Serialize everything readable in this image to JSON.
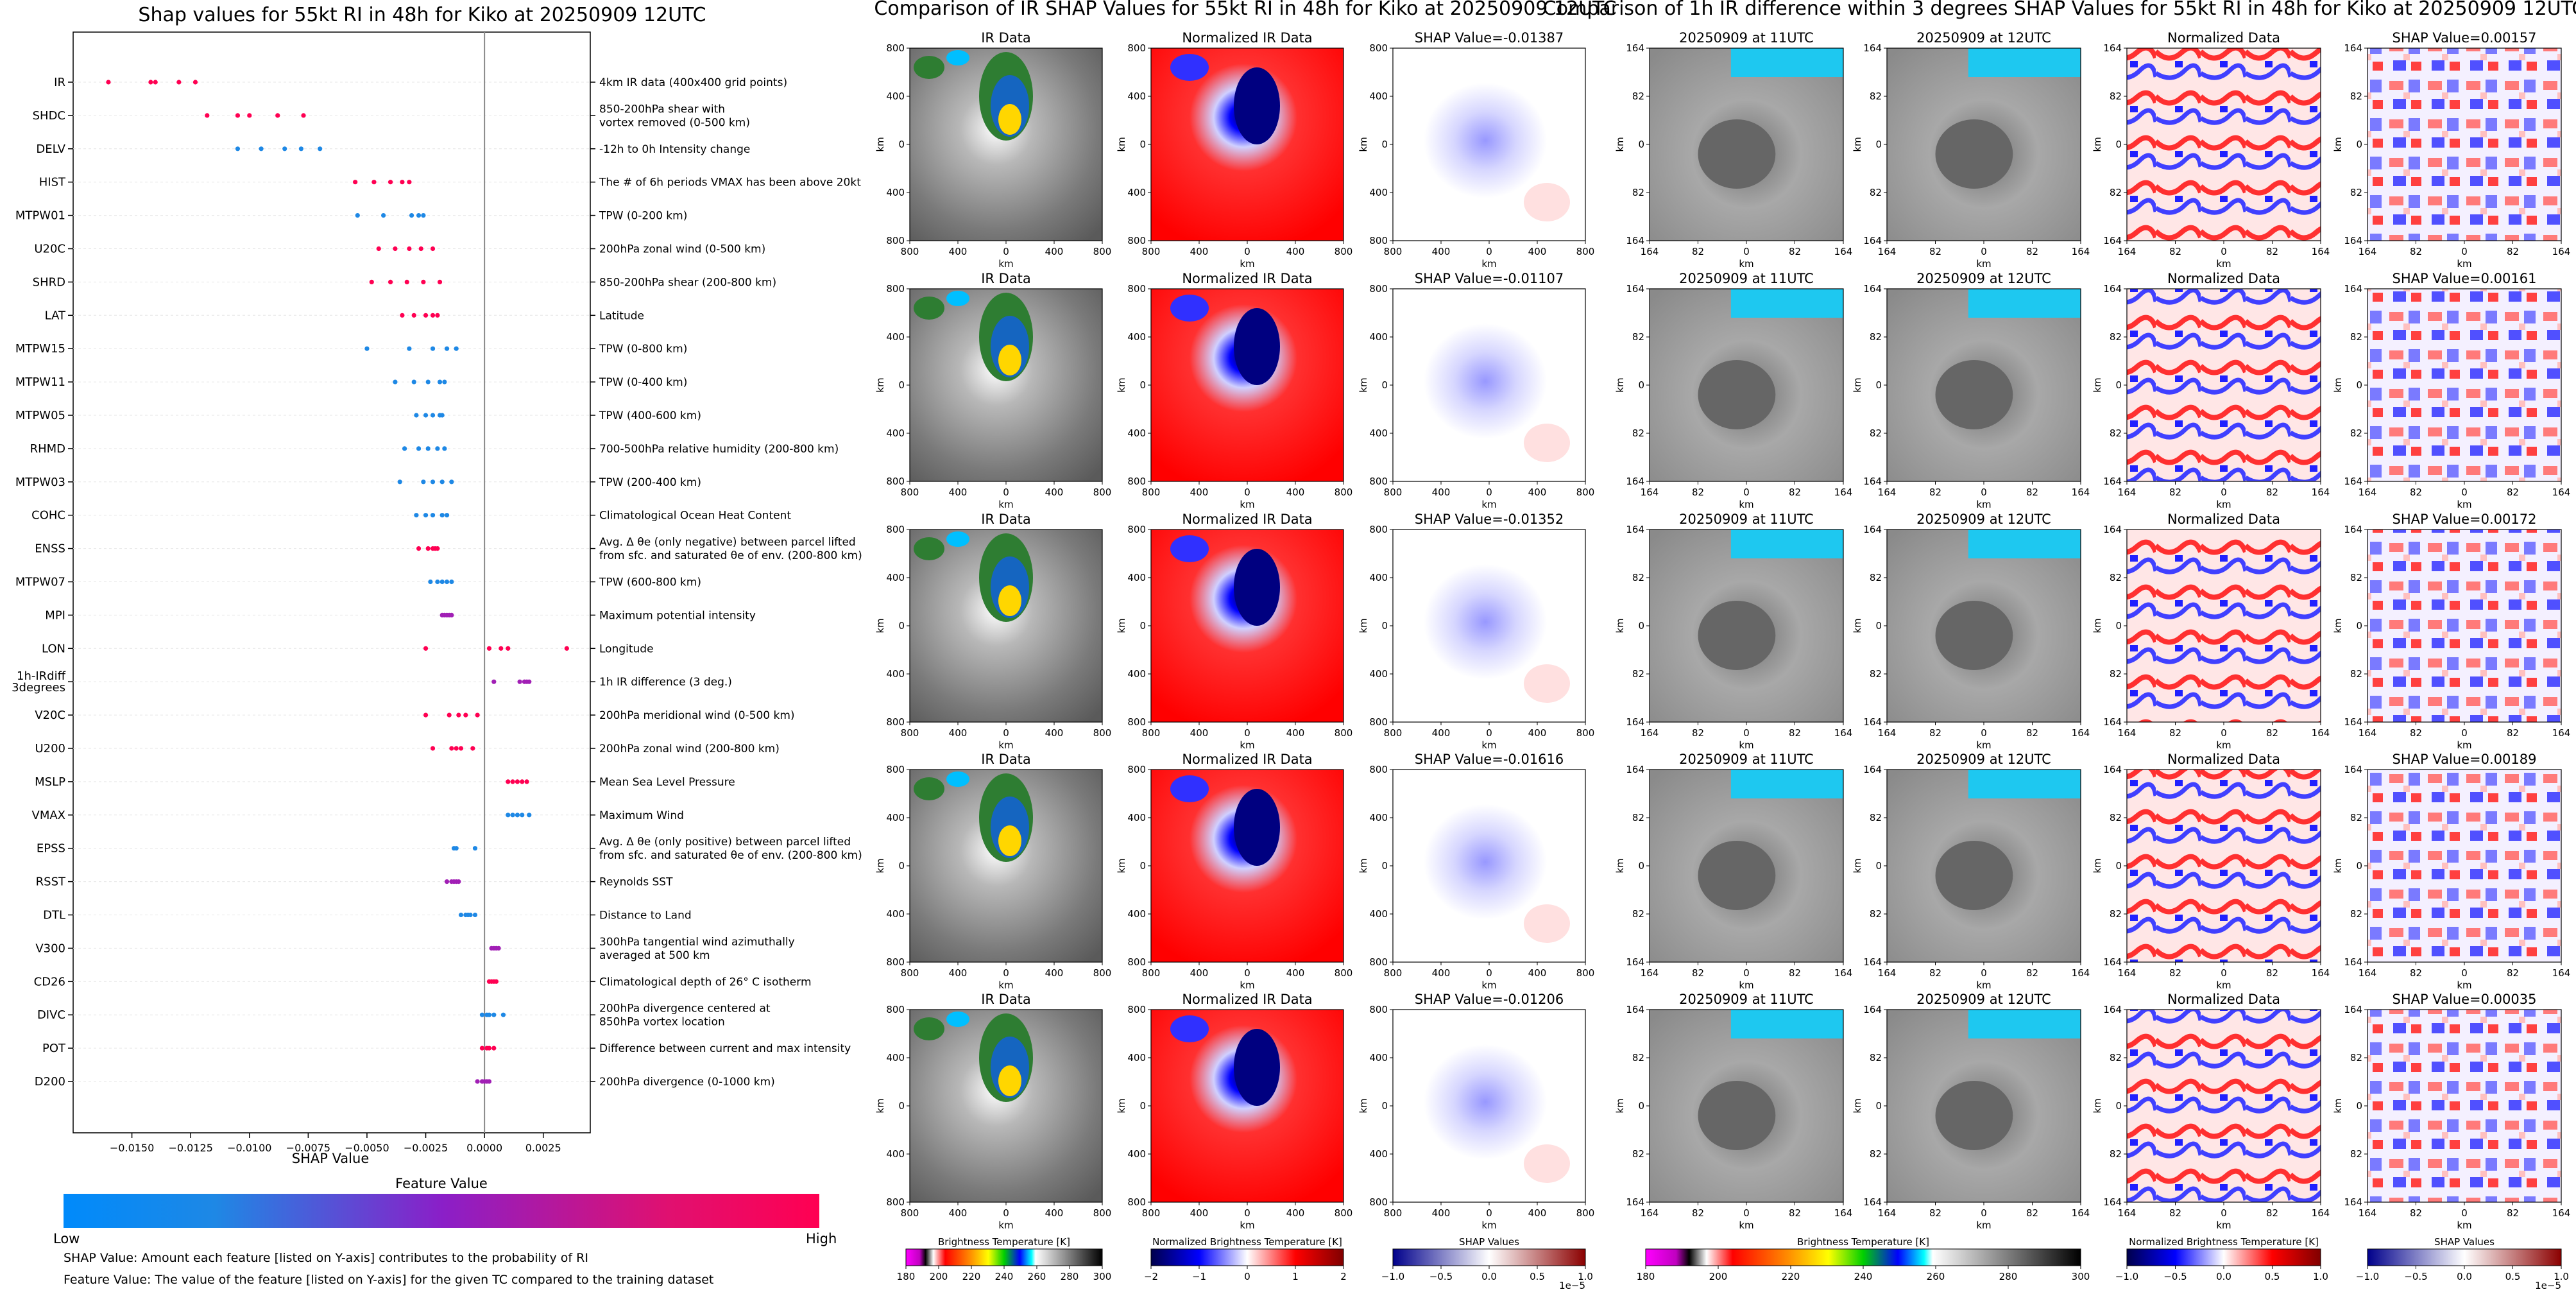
{
  "shap_chart": {
    "title": "Shap values for 55kt RI in 48h for Kiko at 20250909 12UTC",
    "xlabel": "SHAP Value",
    "x_ticks": [
      "−0.0150",
      "−0.0125",
      "−0.0100",
      "−0.0075",
      "−0.0050",
      "−0.0025",
      "0.0000",
      "0.0025"
    ],
    "colorbar_title": "Feature Value",
    "colorbar_low": "Low",
    "colorbar_high": "High",
    "colors": {
      "low": "#1e88e5",
      "mid": "#a11fb5",
      "high": "#ff0052"
    },
    "note1": "SHAP Value: Amount each feature [listed on Y-axis] contributes to the probability of RI",
    "note2": "Feature Value: The value of the feature [listed on Y-axis] for the given TC compared to the training dataset"
  },
  "chart_data": {
    "type": "scatter",
    "xlim": [
      -0.0175,
      0.0045
    ],
    "features": [
      {
        "name": "IR",
        "desc": "4km IR data (400x400 grid points)",
        "values": [
          -0.016,
          -0.0142,
          -0.014,
          -0.013,
          -0.0123
        ],
        "color": "high"
      },
      {
        "name": "SHDC",
        "desc": "850-200hPa shear with\nvortex removed (0-500 km)",
        "values": [
          -0.0118,
          -0.0105,
          -0.01,
          -0.0088,
          -0.0077
        ],
        "color": "high"
      },
      {
        "name": "DELV",
        "desc": "-12h to 0h Intensity change",
        "values": [
          -0.0105,
          -0.0095,
          -0.0085,
          -0.0078,
          -0.007
        ],
        "color": "low"
      },
      {
        "name": "HIST",
        "desc": "The # of 6h periods VMAX has been above 20kt",
        "values": [
          -0.0055,
          -0.0047,
          -0.004,
          -0.0035,
          -0.0032
        ],
        "color": "high"
      },
      {
        "name": "MTPW01",
        "desc": "TPW (0-200 km)",
        "values": [
          -0.0054,
          -0.0043,
          -0.0031,
          -0.0028,
          -0.0026
        ],
        "color": "low"
      },
      {
        "name": "U20C",
        "desc": "200hPa zonal wind (0-500 km)",
        "values": [
          -0.0045,
          -0.0038,
          -0.0032,
          -0.0027,
          -0.0022
        ],
        "color": "high"
      },
      {
        "name": "SHRD",
        "desc": "850-200hPa shear (200-800 km)",
        "values": [
          -0.0048,
          -0.004,
          -0.0033,
          -0.0026,
          -0.0019
        ],
        "color": "high"
      },
      {
        "name": "LAT",
        "desc": "Latitude",
        "values": [
          -0.0035,
          -0.003,
          -0.0025,
          -0.0022,
          -0.002
        ],
        "color": "high"
      },
      {
        "name": "MTPW15",
        "desc": "TPW (0-800 km)",
        "values": [
          -0.005,
          -0.0032,
          -0.0022,
          -0.0016,
          -0.0012
        ],
        "color": "low"
      },
      {
        "name": "MTPW11",
        "desc": "TPW (0-400 km)",
        "values": [
          -0.0038,
          -0.003,
          -0.0024,
          -0.0019,
          -0.0017
        ],
        "color": "low"
      },
      {
        "name": "MTPW05",
        "desc": "TPW (400-600 km)",
        "values": [
          -0.0029,
          -0.0025,
          -0.0022,
          -0.0019,
          -0.0018
        ],
        "color": "low"
      },
      {
        "name": "RHMD",
        "desc": "700-500hPa relative humidity (200-800 km)",
        "values": [
          -0.0034,
          -0.0028,
          -0.0024,
          -0.002,
          -0.0017
        ],
        "color": "low"
      },
      {
        "name": "MTPW03",
        "desc": "TPW (200-400 km)",
        "values": [
          -0.0036,
          -0.0026,
          -0.0022,
          -0.0018,
          -0.0014
        ],
        "color": "low"
      },
      {
        "name": "COHC",
        "desc": "Climatological Ocean Heat Content",
        "values": [
          -0.0029,
          -0.0025,
          -0.0022,
          -0.0018,
          -0.0016
        ],
        "color": "low"
      },
      {
        "name": "ENSS",
        "desc": "Avg. Δ θe (only negative) between parcel lifted\nfrom sfc. and saturated θe of env. (200-800 km)",
        "values": [
          -0.0028,
          -0.0024,
          -0.0022,
          -0.0021,
          -0.002
        ],
        "color": "high"
      },
      {
        "name": "MTPW07",
        "desc": "TPW (600-800 km)",
        "values": [
          -0.0023,
          -0.002,
          -0.0018,
          -0.0016,
          -0.0014
        ],
        "color": "low"
      },
      {
        "name": "MPI",
        "desc": "Maximum potential intensity",
        "values": [
          -0.0018,
          -0.0017,
          -0.0016,
          -0.0015,
          -0.0014
        ],
        "color": "mid"
      },
      {
        "name": "LON",
        "desc": "Longitude",
        "values": [
          -0.0025,
          0.0002,
          0.0007,
          0.001,
          0.0035
        ],
        "color": "high"
      },
      {
        "name": "1h-IRdiff\n3degrees",
        "desc": "1h IR difference (3 deg.)",
        "values": [
          0.0004,
          0.0015,
          0.0017,
          0.0018,
          0.0019
        ],
        "color": "mid"
      },
      {
        "name": "V20C",
        "desc": "200hPa meridional wind (0-500 km)",
        "values": [
          -0.0025,
          -0.0015,
          -0.0011,
          -0.0008,
          -0.0003
        ],
        "color": "high"
      },
      {
        "name": "U200",
        "desc": "200hPa zonal wind (200-800 km)",
        "values": [
          -0.0022,
          -0.0014,
          -0.0012,
          -0.001,
          -0.0005
        ],
        "color": "high"
      },
      {
        "name": "MSLP",
        "desc": "Mean Sea Level Pressure",
        "values": [
          0.001,
          0.0012,
          0.0014,
          0.0016,
          0.0018
        ],
        "color": "high"
      },
      {
        "name": "VMAX",
        "desc": "Maximum Wind",
        "values": [
          0.001,
          0.0012,
          0.0014,
          0.0016,
          0.0019
        ],
        "color": "low"
      },
      {
        "name": "EPSS",
        "desc": "Avg. Δ θe (only positive) between parcel lifted\nfrom sfc. and saturated θe of env. (200-800 km)",
        "values": [
          -0.0013,
          -0.0012,
          -0.0004
        ],
        "color": "low"
      },
      {
        "name": "RSST",
        "desc": "Reynolds SST",
        "values": [
          -0.0016,
          -0.0014,
          -0.0013,
          -0.0012,
          -0.0011
        ],
        "color": "mid"
      },
      {
        "name": "DTL",
        "desc": "Distance to Land",
        "values": [
          -0.001,
          -0.0008,
          -0.0007,
          -0.0006,
          -0.0004
        ],
        "color": "low"
      },
      {
        "name": "V300",
        "desc": "300hPa tangential wind azimuthally\naveraged at 500 km",
        "values": [
          0.0003,
          0.0004,
          0.0005,
          0.0006
        ],
        "color": "mid"
      },
      {
        "name": "CD26",
        "desc": "Climatological depth of 26° C isotherm",
        "values": [
          0.0002,
          0.0003,
          0.0004,
          0.0005
        ],
        "color": "high"
      },
      {
        "name": "DIVC",
        "desc": "200hPa divergence centered at\n850hPa vortex location",
        "values": [
          -0.0001,
          0.0001,
          0.0002,
          0.0004,
          0.0008
        ],
        "color": "low"
      },
      {
        "name": "POT",
        "desc": "Difference between current and max intensity",
        "values": [
          -0.0001,
          0.0001,
          0.0002,
          0.0004
        ],
        "color": "high"
      },
      {
        "name": "D200",
        "desc": "200hPa divergence (0-1000 km)",
        "values": [
          -0.0003,
          -0.0001,
          0.0,
          0.0001,
          0.0002
        ],
        "color": "mid"
      }
    ]
  },
  "mid_section": {
    "title": "Comparison of IR SHAP Values for 55kt RI in 48h for Kiko at 20250909 12UTC",
    "col_titles": [
      "IR Data",
      "Normalized IR Data"
    ],
    "shap_titles": [
      "SHAP Value=-0.01387",
      "SHAP Value=-0.01107",
      "SHAP Value=-0.01352",
      "SHAP Value=-0.01616",
      "SHAP Value=-0.01206"
    ],
    "y_ticks": [
      "800",
      "400",
      "0",
      "400",
      "800"
    ],
    "x_ticks": [
      "800",
      "400",
      "0",
      "400",
      "800"
    ],
    "axis_label": "km",
    "cb1_label": "Brightness Temperature [K]",
    "cb1_ticks": [
      "180",
      "200",
      "220",
      "240",
      "260",
      "280",
      "300"
    ],
    "cb2_label": "Normalized Brightness Temperature [K]",
    "cb2_ticks": [
      "−2",
      "−1",
      "0",
      "1",
      "2"
    ],
    "cb3_label": "SHAP Values",
    "cb3_ticks": [
      "−1.0",
      "−0.5",
      "0.0",
      "0.5",
      "1.0"
    ],
    "cb3_exp": "1e−5"
  },
  "right_section": {
    "title": "Comparison of 1h IR difference within 3 degrees SHAP Values for 55kt RI in 48h for Kiko at 20250909 12UTC",
    "col_titles": [
      "20250909 at 11UTC",
      "20250909 at 12UTC",
      "Normalized Data"
    ],
    "shap_titles": [
      "SHAP Value=0.00157",
      "SHAP Value=0.00161",
      "SHAP Value=0.00172",
      "SHAP Value=0.00189",
      "SHAP Value=0.00035"
    ],
    "y_ticks": [
      "164",
      "82",
      "0",
      "82",
      "164"
    ],
    "x_ticks": [
      "164",
      "82",
      "0",
      "82",
      "164"
    ],
    "axis_label": "km",
    "cb1_label": "Brightness Temperature [K]",
    "cb1_ticks": [
      "180",
      "200",
      "220",
      "240",
      "260",
      "280",
      "300"
    ],
    "cb2_label": "Normalized Brightness Temperature [K]",
    "cb2_ticks": [
      "−1.0",
      "−0.5",
      "0.0",
      "0.5",
      "1.0"
    ],
    "cb3_label": "SHAP Values",
    "cb3_ticks": [
      "−1.0",
      "−0.5",
      "0.0",
      "0.5",
      "1.0"
    ],
    "cb3_exp": "1e−5"
  }
}
